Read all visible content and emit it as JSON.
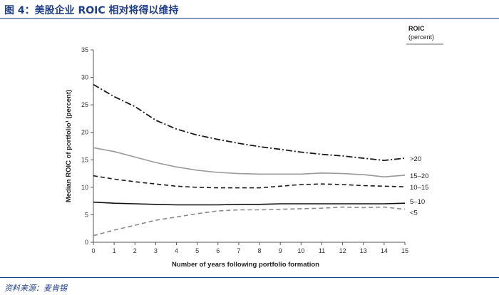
{
  "header": {
    "title": "图 4：美股企业 ROIC 相对将得以维持"
  },
  "footer": {
    "source": "资料来源：麦肯锡"
  },
  "chart_data": {
    "type": "line",
    "title": "",
    "xlabel": "Number of years following portfolio formation",
    "ylabel": "Median ROIC of portfolio¹ (percent)",
    "xlim": [
      0,
      15
    ],
    "ylim": [
      0,
      35
    ],
    "x_ticks": [
      0,
      1,
      2,
      3,
      4,
      5,
      6,
      7,
      8,
      9,
      10,
      11,
      12,
      13,
      14,
      15
    ],
    "y_ticks": [
      0,
      5,
      10,
      15,
      20,
      25,
      30,
      35
    ],
    "legend_title": "ROIC",
    "legend_subtitle": "(percent)",
    "x": [
      0,
      1,
      2,
      3,
      4,
      5,
      6,
      7,
      8,
      9,
      10,
      11,
      12,
      13,
      14,
      15
    ],
    "series": [
      {
        "name": ">20",
        "color": "#1a1a1a",
        "style": "dashdot",
        "values": [
          28.7,
          26.5,
          24.7,
          22.2,
          20.6,
          19.5,
          18.7,
          18.0,
          17.4,
          16.9,
          16.4,
          16.0,
          15.7,
          15.3,
          14.9,
          15.3
        ]
      },
      {
        "name": "15–20",
        "color": "#9a9a9a",
        "style": "solid",
        "values": [
          17.2,
          16.5,
          15.5,
          14.5,
          13.7,
          13.1,
          12.7,
          12.5,
          12.4,
          12.4,
          12.4,
          12.6,
          12.5,
          12.3,
          11.9,
          12.2
        ]
      },
      {
        "name": "10–15",
        "color": "#1a1a1a",
        "style": "dashed",
        "values": [
          12.1,
          11.5,
          11.0,
          10.6,
          10.2,
          10.0,
          9.9,
          9.9,
          9.9,
          10.2,
          10.5,
          10.6,
          10.5,
          10.3,
          10.2,
          10.1
        ]
      },
      {
        "name": "5–10",
        "color": "#111111",
        "style": "solid",
        "values": [
          7.3,
          7.1,
          7.0,
          6.9,
          6.8,
          6.8,
          6.8,
          6.9,
          6.9,
          7.0,
          7.0,
          7.0,
          7.0,
          7.0,
          7.0,
          7.1
        ]
      },
      {
        "name": "<5",
        "color": "#8a8a8a",
        "style": "dashed",
        "values": [
          1.2,
          2.2,
          3.1,
          4.0,
          4.6,
          5.2,
          5.7,
          5.9,
          5.9,
          6.0,
          6.1,
          6.2,
          6.4,
          6.3,
          6.4,
          6.0
        ]
      }
    ]
  }
}
